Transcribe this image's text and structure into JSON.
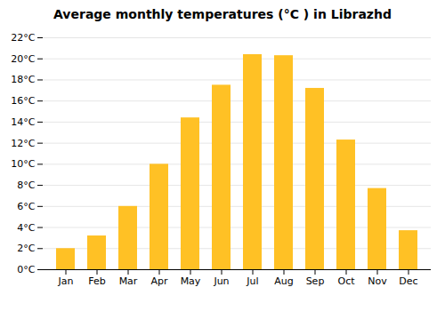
{
  "chart_data": {
    "type": "bar",
    "title": "Average monthly temperatures (°C ) in Librazhd",
    "categories": [
      "Jan",
      "Feb",
      "Mar",
      "Apr",
      "May",
      "Jun",
      "Jul",
      "Aug",
      "Sep",
      "Oct",
      "Nov",
      "Dec"
    ],
    "values": [
      2.0,
      3.2,
      6.0,
      10.0,
      14.4,
      17.5,
      20.4,
      20.3,
      17.2,
      12.3,
      7.7,
      3.7
    ],
    "color": "#FFC125",
    "ylim": [
      0,
      22
    ],
    "yticks": [
      {
        "value": 0,
        "label": "0°C"
      },
      {
        "value": 2,
        "label": "2°C"
      },
      {
        "value": 4,
        "label": "4°C"
      },
      {
        "value": 6,
        "label": "6°C"
      },
      {
        "value": 8,
        "label": "8°C"
      },
      {
        "value": 10,
        "label": "10°C"
      },
      {
        "value": 12,
        "label": "12°C"
      },
      {
        "value": 14,
        "label": "14°C"
      },
      {
        "value": 16,
        "label": "16°C"
      },
      {
        "value": 18,
        "label": "18°C"
      },
      {
        "value": 20,
        "label": "20°C"
      },
      {
        "value": 22,
        "label": "22°C"
      }
    ],
    "grid": true
  }
}
